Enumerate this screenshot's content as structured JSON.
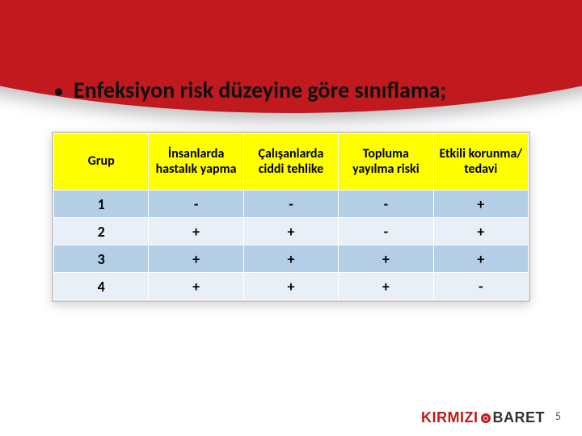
{
  "slide": {
    "bullet_char": "•",
    "title": "Enfeksiyon risk düzeyine göre sınıflama;"
  },
  "table": {
    "type": "table",
    "header_bg": "#ffff00",
    "row_bg_alt": [
      "#b4cee6",
      "#e9eff7"
    ],
    "border_color": "#ffffff",
    "columns": [
      "Grup",
      "İnsanlarda hastalık yapma",
      "Çalışanlarda ciddi tehlike",
      "Topluma yayılma riski",
      "Etkili korunma/ tedavi"
    ],
    "rows": [
      [
        "1",
        "-",
        "-",
        "-",
        "+"
      ],
      [
        "2",
        "+",
        "+",
        "-",
        "+"
      ],
      [
        "3",
        "+",
        "+",
        "+",
        "+"
      ],
      [
        "4",
        "+",
        "+",
        "+",
        "-"
      ]
    ],
    "header_fontsize": 16,
    "cell_fontsize": 18
  },
  "footer": {
    "page_number": "5",
    "logo_red": "KIRMIZI",
    "logo_dark": "BARET"
  },
  "colors": {
    "banner": "#c01a1f",
    "background": "#ffffff"
  }
}
